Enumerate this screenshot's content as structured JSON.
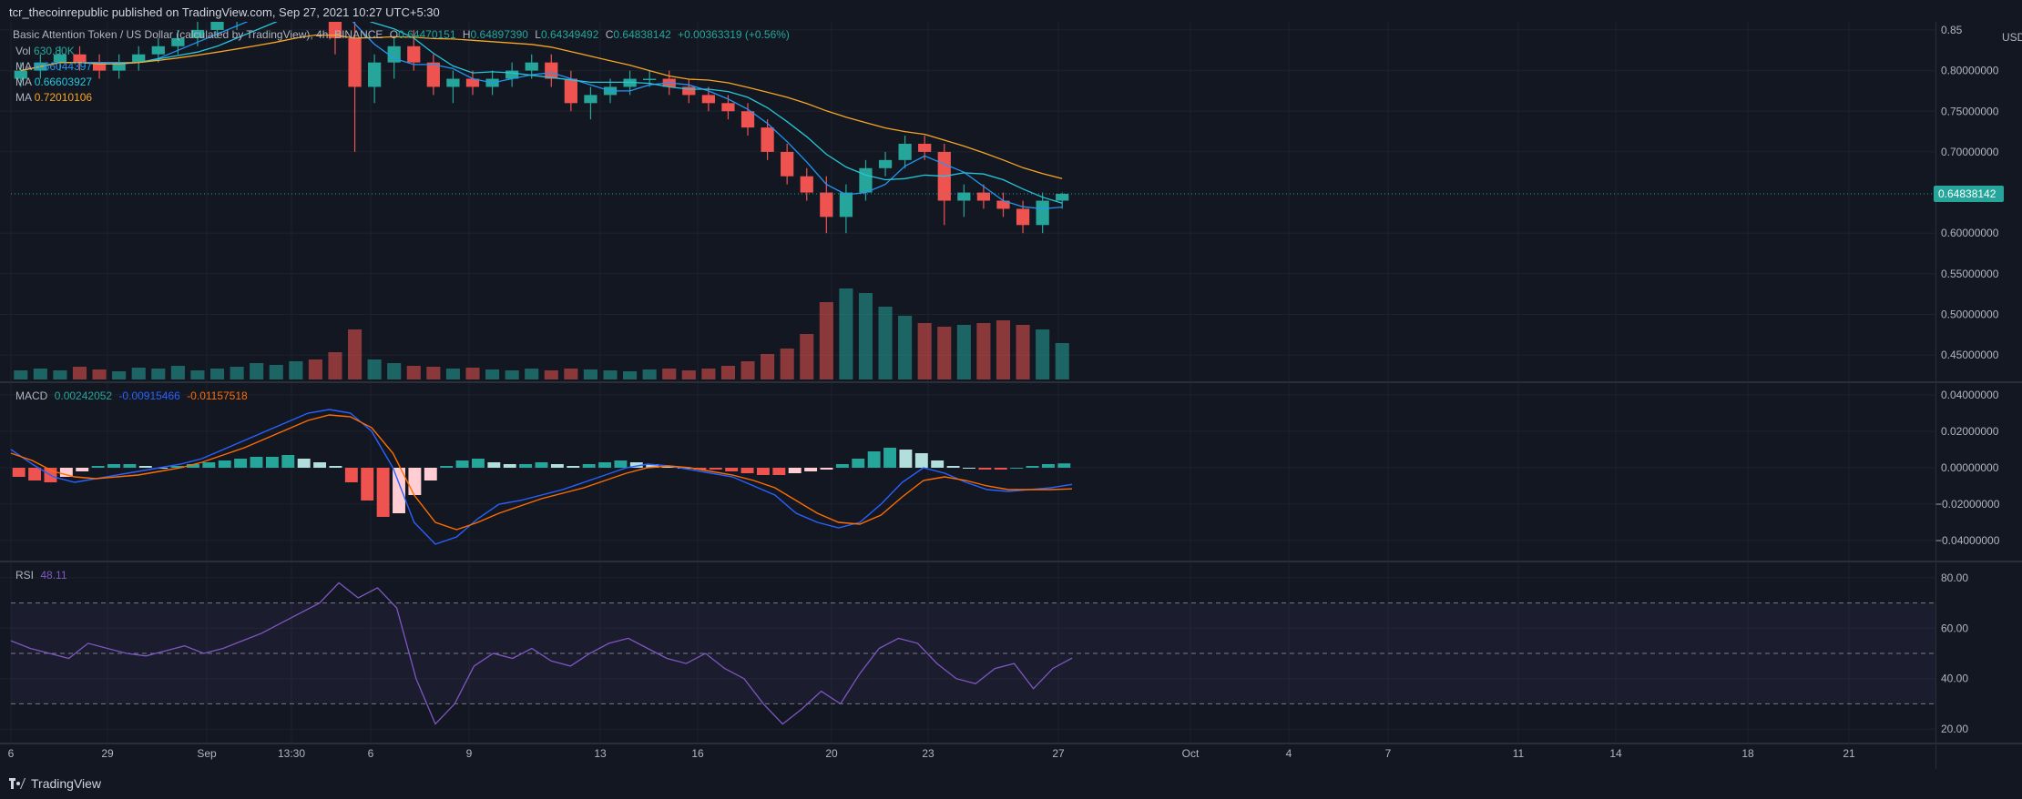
{
  "publisher_line": "tcr_thecoinrepublic published on TradingView.com, Sep 27, 2021 10:27 UTC+5:30",
  "brand": "TradingView",
  "colors": {
    "background": "#131722",
    "grid": "#1e222d",
    "text": "#b2b5be",
    "up": "#26a69a",
    "down": "#ef5350",
    "ma_blue": "#2196f3",
    "ma_cyan": "#26c6da",
    "ma_orange": "#f6a623",
    "macd_line": "#2962ff",
    "signal_line": "#ff6d00",
    "rsi_line": "#7e57c2"
  },
  "legend": {
    "title": "Basic Attention Token / US Dollar (calculated by TradingView), 4h, BINANCE",
    "o_label": "O",
    "o": "0.64470151",
    "h_label": "H",
    "h": "0.64897390",
    "l_label": "L",
    "l": "0.64349492",
    "c_label": "C",
    "c": "0.64838142",
    "change": "+0.00363319 (+0.56%)",
    "vol_label": "Vol",
    "vol": "630.80K",
    "ma1_label": "MA",
    "ma1": "0.66044397",
    "ma2_label": "MA",
    "ma2": "0.66603927",
    "ma3_label": "MA",
    "ma3": "0.72010106"
  },
  "price_axis": {
    "currency": "USD",
    "ticks": [
      "0.85",
      "0.80000000",
      "0.75000000",
      "0.70000000",
      "0.60000000",
      "0.55000000",
      "0.50000000",
      "0.45000000"
    ],
    "last_price": "0.64838142"
  },
  "macd_legend": {
    "label": "MACD",
    "hist": "0.00242052",
    "macd": "-0.00915466",
    "signal": "-0.01157518"
  },
  "macd_axis": {
    "ticks": [
      "0.04000000",
      "0.02000000",
      "0.00000000",
      "−0.02000000",
      "−0.04000000"
    ]
  },
  "rsi_legend": {
    "label": "RSI",
    "value": "48.11"
  },
  "rsi_axis": {
    "ticks": [
      "80.00",
      "60.00",
      "40.00",
      "20.00"
    ]
  },
  "time_axis": {
    "ticks": [
      "6",
      "29",
      "Sep",
      "13:30",
      "6",
      "9",
      "13",
      "16",
      "20",
      "23",
      "27",
      "Oct",
      "4",
      "7",
      "11",
      "14",
      "18",
      "21"
    ]
  },
  "chart_data": [
    {
      "type": "candlestick",
      "title": "Basic Attention Token / US Dollar (calculated by TradingView), 4h, BINANCE",
      "x_range": [
        "Aug 26",
        "Sep 27"
      ],
      "ylim": [
        0.42,
        0.86
      ],
      "candles_approx": [
        [
          0.79,
          0.81,
          0.78,
          0.8
        ],
        [
          0.8,
          0.82,
          0.79,
          0.81
        ],
        [
          0.81,
          0.83,
          0.8,
          0.82
        ],
        [
          0.82,
          0.83,
          0.8,
          0.81
        ],
        [
          0.81,
          0.82,
          0.79,
          0.8
        ],
        [
          0.8,
          0.82,
          0.79,
          0.81
        ],
        [
          0.81,
          0.83,
          0.8,
          0.82
        ],
        [
          0.82,
          0.84,
          0.81,
          0.83
        ],
        [
          0.83,
          0.85,
          0.82,
          0.84
        ],
        [
          0.84,
          0.86,
          0.83,
          0.85
        ],
        [
          0.85,
          0.87,
          0.84,
          0.86
        ],
        [
          0.86,
          0.88,
          0.85,
          0.87
        ],
        [
          0.87,
          0.89,
          0.86,
          0.88
        ],
        [
          0.88,
          0.9,
          0.87,
          0.89
        ],
        [
          0.89,
          0.92,
          0.88,
          0.91
        ],
        [
          0.91,
          0.93,
          0.89,
          0.9
        ],
        [
          0.9,
          0.91,
          0.82,
          0.84
        ],
        [
          0.84,
          0.86,
          0.7,
          0.78
        ],
        [
          0.78,
          0.82,
          0.76,
          0.81
        ],
        [
          0.81,
          0.84,
          0.79,
          0.83
        ],
        [
          0.83,
          0.85,
          0.8,
          0.81
        ],
        [
          0.81,
          0.82,
          0.77,
          0.78
        ],
        [
          0.78,
          0.8,
          0.76,
          0.79
        ],
        [
          0.79,
          0.8,
          0.77,
          0.78
        ],
        [
          0.78,
          0.8,
          0.77,
          0.79
        ],
        [
          0.79,
          0.81,
          0.78,
          0.8
        ],
        [
          0.8,
          0.82,
          0.79,
          0.81
        ],
        [
          0.81,
          0.82,
          0.78,
          0.79
        ],
        [
          0.79,
          0.8,
          0.75,
          0.76
        ],
        [
          0.76,
          0.78,
          0.74,
          0.77
        ],
        [
          0.77,
          0.79,
          0.76,
          0.78
        ],
        [
          0.78,
          0.8,
          0.77,
          0.79
        ],
        [
          0.79,
          0.8,
          0.78,
          0.79
        ],
        [
          0.79,
          0.8,
          0.77,
          0.78
        ],
        [
          0.78,
          0.79,
          0.76,
          0.77
        ],
        [
          0.77,
          0.78,
          0.75,
          0.76
        ],
        [
          0.76,
          0.77,
          0.74,
          0.75
        ],
        [
          0.75,
          0.76,
          0.72,
          0.73
        ],
        [
          0.73,
          0.74,
          0.69,
          0.7
        ],
        [
          0.7,
          0.71,
          0.66,
          0.67
        ],
        [
          0.67,
          0.68,
          0.64,
          0.65
        ],
        [
          0.65,
          0.67,
          0.6,
          0.62
        ],
        [
          0.62,
          0.66,
          0.6,
          0.65
        ],
        [
          0.65,
          0.69,
          0.64,
          0.68
        ],
        [
          0.68,
          0.7,
          0.67,
          0.69
        ],
        [
          0.69,
          0.72,
          0.68,
          0.71
        ],
        [
          0.71,
          0.72,
          0.69,
          0.7
        ],
        [
          0.7,
          0.71,
          0.61,
          0.64
        ],
        [
          0.64,
          0.66,
          0.62,
          0.65
        ],
        [
          0.65,
          0.66,
          0.63,
          0.64
        ],
        [
          0.64,
          0.65,
          0.62,
          0.63
        ],
        [
          0.63,
          0.64,
          0.6,
          0.61
        ],
        [
          0.61,
          0.65,
          0.6,
          0.64
        ],
        [
          0.64,
          0.65,
          0.63,
          0.6484
        ]
      ],
      "moving_averages": [
        {
          "name": "MA",
          "value": 0.66044397
        },
        {
          "name": "MA",
          "value": 0.66603927
        },
        {
          "name": "MA",
          "value": 0.72010106
        }
      ],
      "last_close": 0.64838142
    },
    {
      "type": "bar",
      "title": "Vol",
      "last_value": "630.80K",
      "relative_values": [
        0.1,
        0.12,
        0.1,
        0.14,
        0.11,
        0.09,
        0.13,
        0.12,
        0.15,
        0.1,
        0.12,
        0.14,
        0.18,
        0.16,
        0.2,
        0.22,
        0.3,
        0.55,
        0.22,
        0.18,
        0.15,
        0.14,
        0.12,
        0.13,
        0.11,
        0.1,
        0.12,
        0.1,
        0.12,
        0.11,
        0.1,
        0.09,
        0.11,
        0.12,
        0.1,
        0.12,
        0.15,
        0.2,
        0.28,
        0.34,
        0.5,
        0.85,
        1.0,
        0.95,
        0.8,
        0.7,
        0.62,
        0.58,
        0.6,
        0.62,
        0.65,
        0.6,
        0.55,
        0.4
      ]
    },
    {
      "type": "bar+line",
      "title": "MACD",
      "ylim": [
        -0.05,
        0.045
      ],
      "histogram": [
        -0.005,
        -0.007,
        -0.008,
        -0.005,
        -0.002,
        0.001,
        0.002,
        0.002,
        0.001,
        0.0,
        0.001,
        0.002,
        0.003,
        0.004,
        0.005,
        0.006,
        0.006,
        0.007,
        0.005,
        0.003,
        0.001,
        -0.008,
        -0.018,
        -0.027,
        -0.025,
        -0.015,
        -0.007,
        0.001,
        0.004,
        0.005,
        0.003,
        0.002,
        0.002,
        0.003,
        0.002,
        0.001,
        0.002,
        0.003,
        0.004,
        0.003,
        0.002,
        0.001,
        0.0,
        -0.001,
        -0.001,
        -0.002,
        -0.003,
        -0.004,
        -0.004,
        -0.003,
        -0.002,
        -0.001,
        0.002,
        0.005,
        0.009,
        0.011,
        0.01,
        0.008,
        0.004,
        0.001,
        0.0,
        -0.001,
        -0.001,
        0.0,
        0.001,
        0.002,
        0.0024
      ],
      "macd": [
        0.01,
        0.002,
        -0.005,
        -0.008,
        -0.006,
        -0.004,
        -0.002,
        0.0,
        0.002,
        0.005,
        0.01,
        0.015,
        0.02,
        0.025,
        0.03,
        0.032,
        0.03,
        0.02,
        0.0,
        -0.03,
        -0.042,
        -0.038,
        -0.028,
        -0.02,
        -0.018,
        -0.015,
        -0.012,
        -0.008,
        -0.004,
        0.0,
        0.002,
        0.001,
        -0.001,
        -0.003,
        -0.005,
        -0.01,
        -0.015,
        -0.025,
        -0.03,
        -0.033,
        -0.03,
        -0.02,
        -0.008,
        0.0,
        -0.003,
        -0.008,
        -0.012,
        -0.013,
        -0.012,
        -0.011,
        -0.00915466
      ],
      "signal": [
        0.008,
        0.004,
        -0.002,
        -0.005,
        -0.006,
        -0.005,
        -0.004,
        -0.002,
        0.0,
        0.003,
        0.007,
        0.011,
        0.016,
        0.021,
        0.026,
        0.029,
        0.028,
        0.022,
        0.008,
        -0.015,
        -0.03,
        -0.034,
        -0.03,
        -0.025,
        -0.021,
        -0.017,
        -0.014,
        -0.011,
        -0.007,
        -0.003,
        0.0,
        0.001,
        0.0,
        -0.002,
        -0.004,
        -0.007,
        -0.011,
        -0.018,
        -0.025,
        -0.03,
        -0.031,
        -0.026,
        -0.016,
        -0.007,
        -0.005,
        -0.007,
        -0.01,
        -0.012,
        -0.012,
        -0.012,
        -0.01157518
      ]
    },
    {
      "type": "line",
      "title": "RSI",
      "ylim": [
        15,
        85
      ],
      "bands": [
        30,
        50,
        70
      ],
      "values": [
        55,
        52,
        50,
        48,
        54,
        52,
        50,
        49,
        51,
        53,
        50,
        52,
        55,
        58,
        62,
        66,
        70,
        78,
        72,
        76,
        68,
        40,
        22,
        30,
        45,
        50,
        48,
        52,
        47,
        45,
        50,
        54,
        56,
        52,
        48,
        46,
        50,
        44,
        40,
        30,
        22,
        28,
        35,
        30,
        42,
        52,
        56,
        54,
        46,
        40,
        38,
        44,
        46,
        36,
        44,
        48.11
      ]
    }
  ]
}
